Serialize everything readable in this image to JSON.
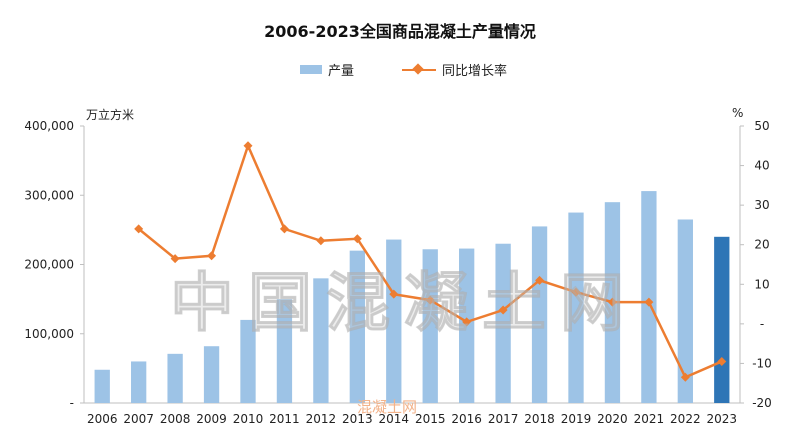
{
  "chart_data": {
    "type": "bar+line",
    "title": "2006-2023全国商品混凝土产量情况",
    "y_left_unit": "万立方米",
    "y_right_unit": "%",
    "categories": [
      "2006",
      "2007",
      "2008",
      "2009",
      "2010",
      "2011",
      "2012",
      "2013",
      "2014",
      "2015",
      "2016",
      "2017",
      "2018",
      "2019",
      "2020",
      "2021",
      "2022",
      "2023"
    ],
    "series": [
      {
        "name": "产量",
        "kind": "bar",
        "axis": "left",
        "color": "#9dc3e6",
        "highlight_color": "#2e75b6",
        "values": [
          48000,
          60000,
          71000,
          82000,
          120000,
          150000,
          180000,
          220000,
          236000,
          222000,
          223000,
          230000,
          255000,
          275000,
          290000,
          306000,
          265000,
          240000
        ]
      },
      {
        "name": "同比增长率",
        "kind": "line",
        "axis": "right",
        "color": "#ed7d31",
        "values": [
          null,
          24,
          16.5,
          17.2,
          45,
          24,
          21,
          21.5,
          7.5,
          6,
          0.5,
          3.5,
          11,
          8,
          5.5,
          5.5,
          -13.5,
          -9.5
        ]
      }
    ],
    "y_left_ticks": [
      "-",
      "100,000",
      "200,000",
      "300,000",
      "400,000"
    ],
    "y_left_range": [
      0,
      400000
    ],
    "y_right_ticks": [
      "-20",
      "-10",
      "-",
      "10",
      "20",
      "30",
      "40",
      "50"
    ],
    "y_right_range": [
      -20,
      50
    ],
    "legend_position": "top-center",
    "grid": false
  },
  "watermark": "中国混凝土网",
  "watermark_small": "混凝土网"
}
